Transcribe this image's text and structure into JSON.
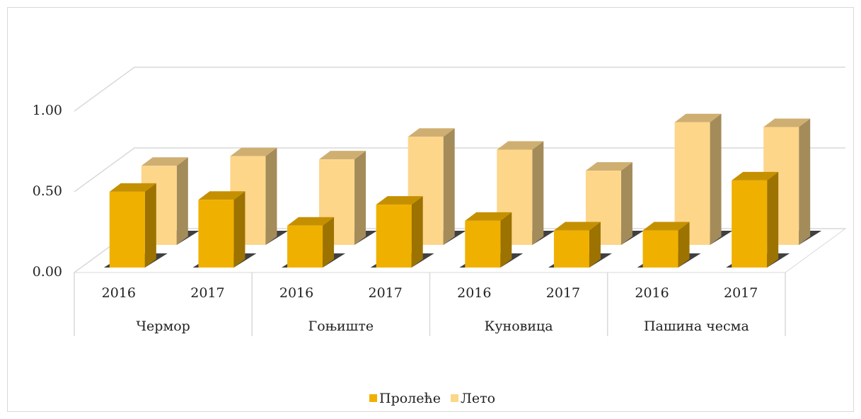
{
  "chart_data": {
    "type": "bar3d",
    "categories": [
      "2016",
      "2017",
      "2016",
      "2017",
      "2016",
      "2017",
      "2016",
      "2017"
    ],
    "groups": [
      "Чермор",
      "Гоњиште",
      "Куновица",
      "Пашина чесма"
    ],
    "series": [
      {
        "name": "Пролеће",
        "color": "#f0b000",
        "values": [
          0.47,
          0.42,
          0.26,
          0.39,
          0.29,
          0.23,
          0.23,
          0.54
        ]
      },
      {
        "name": "Лето",
        "color": "#fdd68a",
        "values": [
          0.49,
          0.55,
          0.53,
          0.67,
          0.59,
          0.46,
          0.76,
          0.73
        ]
      }
    ],
    "ylim": [
      0,
      1
    ],
    "yticks": [
      {
        "value": 0,
        "label": "0.00"
      },
      {
        "value": 0.5,
        "label": "0.50"
      },
      {
        "value": 1,
        "label": "1.00"
      }
    ],
    "grid": true,
    "legend": "bottom"
  }
}
